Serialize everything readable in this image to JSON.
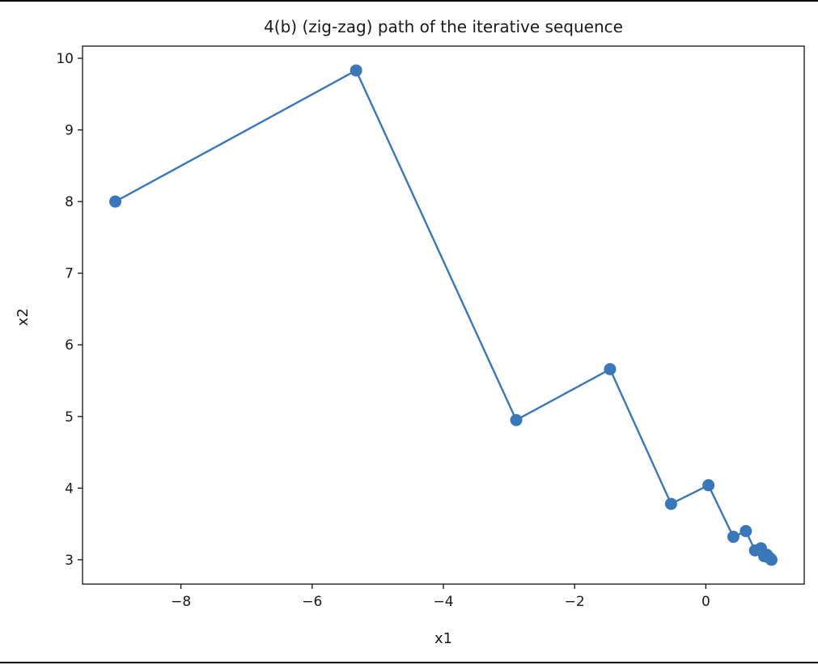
{
  "chart_data": {
    "type": "line",
    "title": "4(b) (zig-zag) path of the iterative sequence",
    "xlabel": "x1",
    "ylabel": "x2",
    "xlim": [
      -9.5,
      1.5
    ],
    "ylim": [
      2.66,
      10.17
    ],
    "xticks": [
      -8,
      -6,
      -4,
      -2,
      0
    ],
    "xtick_labels": [
      "−8",
      "−6",
      "−4",
      "−2",
      "0"
    ],
    "yticks": [
      3,
      4,
      5,
      6,
      7,
      8,
      9,
      10
    ],
    "ytick_labels": [
      "3",
      "4",
      "5",
      "6",
      "7",
      "8",
      "9",
      "10"
    ],
    "grid": false,
    "legend": "none",
    "markers": true,
    "color": "#3a77b8",
    "series": [
      {
        "x": [
          -9.0,
          -5.33,
          -2.89,
          -1.46,
          -0.53,
          0.04,
          0.42,
          0.61,
          0.75,
          0.84,
          0.89,
          0.93,
          0.96,
          0.98,
          0.99,
          1.0
        ],
        "y": [
          8.0,
          9.83,
          4.95,
          5.66,
          3.78,
          4.04,
          3.32,
          3.4,
          3.13,
          3.16,
          3.05,
          3.07,
          3.03,
          3.02,
          3.01,
          3.0
        ]
      }
    ]
  }
}
